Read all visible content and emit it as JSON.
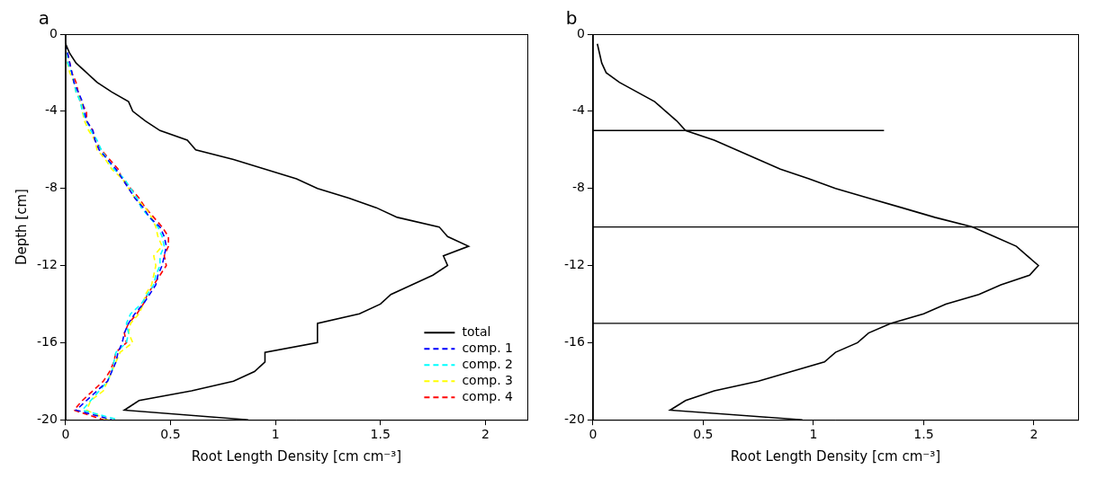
{
  "chart_data": [
    {
      "type": "line",
      "title": "a",
      "x_label": "Root Length Density [cm cm⁻³]",
      "y_label": "Depth [cm]",
      "xlim": [
        0,
        2.2
      ],
      "xticks": [
        0,
        0.5,
        1,
        1.5,
        2
      ],
      "ylim": [
        -20,
        0
      ],
      "yticks": [
        -20,
        -16,
        -12,
        -8,
        -4,
        0
      ],
      "grid": false,
      "legend": "lower right",
      "y": [
        -0.5,
        -1,
        -1.5,
        -2,
        -2.5,
        -3,
        -3.5,
        -4,
        -4.5,
        -5,
        -5.5,
        -6,
        -6.5,
        -7,
        -7.5,
        -8,
        -8.5,
        -9,
        -9.5,
        -10,
        -10.5,
        -11,
        -11.5,
        -12,
        -12.5,
        -13,
        -13.5,
        -14,
        -14.5,
        -15,
        -15.5,
        -16,
        -16.5,
        -17,
        -17.5,
        -18,
        -18.5,
        -19,
        -19.5,
        -20
      ],
      "series": [
        {
          "name": "total",
          "color": "#000000",
          "line_style": "solid",
          "x": [
            0,
            0.02,
            0.05,
            0.1,
            0.15,
            0.22,
            0.3,
            0.32,
            0.38,
            0.45,
            0.58,
            0.62,
            0.8,
            0.95,
            1.1,
            1.2,
            1.35,
            1.48,
            1.58,
            1.78,
            1.82,
            1.92,
            1.8,
            1.82,
            1.75,
            1.65,
            1.55,
            1.5,
            1.4,
            1.2,
            1.2,
            1.2,
            0.95,
            0.95,
            0.9,
            0.8,
            0.6,
            0.35,
            0.28,
            0.87
          ]
        },
        {
          "name": "comp. 1",
          "color": "#0000ff",
          "line_style": "dashed",
          "x": [
            0,
            0.01,
            0.02,
            0.03,
            0.04,
            0.06,
            0.08,
            0.09,
            0.1,
            0.13,
            0.14,
            0.16,
            0.2,
            0.24,
            0.27,
            0.3,
            0.33,
            0.37,
            0.4,
            0.45,
            0.47,
            0.48,
            0.47,
            0.46,
            0.44,
            0.43,
            0.4,
            0.37,
            0.33,
            0.3,
            0.28,
            0.27,
            0.25,
            0.24,
            0.22,
            0.2,
            0.15,
            0.1,
            0.05,
            0.22
          ]
        },
        {
          "name": "comp. 2",
          "color": "#00ffff",
          "line_style": "dashed",
          "x": [
            0,
            0.01,
            0.01,
            0.03,
            0.04,
            0.05,
            0.07,
            0.08,
            0.1,
            0.12,
            0.15,
            0.17,
            0.2,
            0.23,
            0.28,
            0.31,
            0.34,
            0.36,
            0.4,
            0.44,
            0.46,
            0.47,
            0.45,
            0.45,
            0.43,
            0.42,
            0.39,
            0.36,
            0.31,
            0.29,
            0.3,
            0.29,
            0.24,
            0.23,
            0.22,
            0.2,
            0.16,
            0.12,
            0.08,
            0.25
          ]
        },
        {
          "name": "comp. 3",
          "color": "#ffff00",
          "line_style": "dashed",
          "x": [
            0,
            0.01,
            0.01,
            0.02,
            0.04,
            0.05,
            0.08,
            0.08,
            0.09,
            0.11,
            0.14,
            0.15,
            0.19,
            0.22,
            0.27,
            0.3,
            0.33,
            0.38,
            0.41,
            0.43,
            0.44,
            0.46,
            0.42,
            0.43,
            0.42,
            0.41,
            0.38,
            0.37,
            0.35,
            0.31,
            0.3,
            0.32,
            0.26,
            0.24,
            0.22,
            0.2,
            0.18,
            0.12,
            0.1,
            0.2
          ]
        },
        {
          "name": "comp. 4",
          "color": "#ff0000",
          "line_style": "dashed",
          "x": [
            0,
            0.01,
            0.02,
            0.03,
            0.05,
            0.06,
            0.07,
            0.1,
            0.1,
            0.13,
            0.14,
            0.17,
            0.21,
            0.25,
            0.27,
            0.31,
            0.35,
            0.38,
            0.42,
            0.46,
            0.49,
            0.49,
            0.47,
            0.48,
            0.45,
            0.42,
            0.39,
            0.37,
            0.34,
            0.3,
            0.28,
            0.29,
            0.24,
            0.23,
            0.21,
            0.18,
            0.13,
            0.08,
            0.04,
            0.18
          ]
        }
      ]
    },
    {
      "type": "line",
      "title": "b",
      "x_label": "Root Length Density [cm cm⁻³]",
      "xlim": [
        0,
        2.2
      ],
      "xticks": [
        0,
        0.5,
        1,
        1.5,
        2
      ],
      "ylim": [
        -20,
        0
      ],
      "yticks": [
        -20,
        -16,
        -12,
        -8,
        -4,
        0
      ],
      "grid": false,
      "y": [
        -0.5,
        -1,
        -1.5,
        -2,
        -2.5,
        -3,
        -3.5,
        -4,
        -4.5,
        -5,
        -5.5,
        -6,
        -6.5,
        -7,
        -7.5,
        -8,
        -8.5,
        -9,
        -9.5,
        -10,
        -10.5,
        -11,
        -11.5,
        -12,
        -12.5,
        -13,
        -13.5,
        -14,
        -14.5,
        -15,
        -15.5,
        -16,
        -16.5,
        -17,
        -17.5,
        -18,
        -18.5,
        -19,
        -19.5,
        -20
      ],
      "series": [
        {
          "color": "#000000",
          "line_style": "solid",
          "x": [
            0.02,
            0.03,
            0.04,
            0.06,
            0.12,
            0.2,
            0.28,
            0.33,
            0.38,
            0.42,
            0.55,
            0.65,
            0.75,
            0.85,
            0.98,
            1.1,
            1.25,
            1.4,
            1.55,
            1.72,
            1.82,
            1.92,
            1.97,
            2.02,
            1.98,
            1.85,
            1.75,
            1.6,
            1.5,
            1.35,
            1.25,
            1.2,
            1.1,
            1.05,
            0.9,
            0.75,
            0.55,
            0.42,
            0.35,
            0.95
          ]
        }
      ],
      "hlines": [
        {
          "y": -5,
          "x": [
            0,
            1.32
          ],
          "color": "#000000"
        },
        {
          "y": -10,
          "x": [
            0,
            2.2
          ],
          "color": "#000000"
        },
        {
          "y": -15,
          "x": [
            0,
            2.2
          ],
          "color": "#000000"
        }
      ]
    }
  ]
}
